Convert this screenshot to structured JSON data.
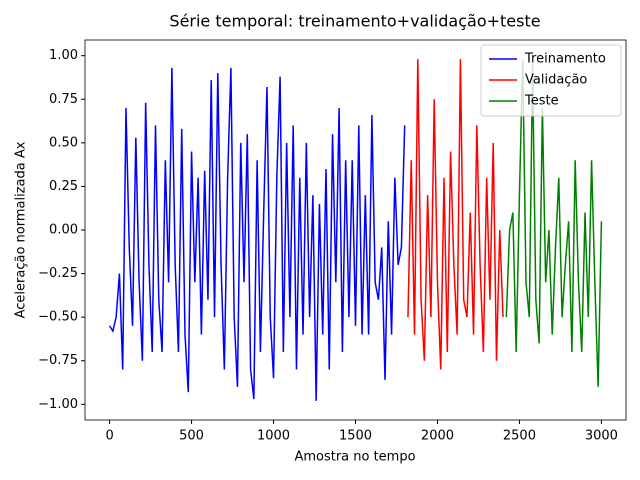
{
  "chart_data": {
    "type": "line",
    "title": "Série temporal: treinamento+validação+teste",
    "x_label": "Amostra no tempo",
    "y_label": "Aceleração normalizada Ax",
    "xlim": [
      -150,
      3150
    ],
    "ylim": [
      -1.09,
      1.09
    ],
    "xticks": [
      0,
      500,
      1000,
      1500,
      2000,
      2500,
      3000
    ],
    "yticks": [
      {
        "value": -1,
        "label": "−1.00"
      },
      {
        "value": -0.75,
        "label": "−0.75"
      },
      {
        "value": -0.5,
        "label": "−0.50"
      },
      {
        "value": -0.25,
        "label": "−0.25"
      },
      {
        "value": 0,
        "label": "0.00"
      },
      {
        "value": 0.25,
        "label": "0.25"
      },
      {
        "value": 0.5,
        "label": "0.50"
      },
      {
        "value": 0.75,
        "label": "0.75"
      },
      {
        "value": 1,
        "label": "1.00"
      }
    ],
    "grid": false,
    "legend": "upper right",
    "series": [
      {
        "name": "Treinamento",
        "color": "#0000ff",
        "x": [
          0,
          20,
          40,
          60,
          80,
          100,
          120,
          140,
          160,
          180,
          200,
          220,
          240,
          260,
          280,
          300,
          320,
          340,
          360,
          380,
          400,
          420,
          440,
          460,
          480,
          500,
          520,
          540,
          560,
          580,
          600,
          620,
          640,
          660,
          680,
          700,
          720,
          740,
          760,
          780,
          800,
          820,
          840,
          860,
          880,
          900,
          920,
          940,
          960,
          980,
          1000,
          1020,
          1040,
          1060,
          1080,
          1100,
          1120,
          1140,
          1160,
          1180,
          1200,
          1220,
          1240,
          1260,
          1280,
          1300,
          1320,
          1340,
          1360,
          1380,
          1400,
          1420,
          1440,
          1460,
          1480,
          1500,
          1520,
          1540,
          1560,
          1580,
          1600,
          1620,
          1640,
          1660,
          1680,
          1700,
          1720,
          1740,
          1760,
          1780,
          1800
        ],
        "values": [
          -0.55,
          -0.58,
          -0.5,
          -0.25,
          -0.8,
          0.7,
          -0.1,
          -0.55,
          0.53,
          -0.3,
          -0.75,
          0.73,
          -0.2,
          -0.7,
          0.6,
          -0.4,
          -0.7,
          0.4,
          -0.3,
          0.93,
          -0.2,
          -0.7,
          0.58,
          -0.6,
          -0.93,
          0.45,
          -0.3,
          0.3,
          -0.6,
          0.34,
          -0.4,
          0.86,
          -0.5,
          0.9,
          -0.2,
          -0.8,
          0.3,
          0.93,
          -0.5,
          -0.9,
          0.5,
          -0.3,
          0.55,
          -0.8,
          -0.97,
          0.4,
          -0.7,
          0.1,
          0.82,
          -0.5,
          -0.85,
          0.3,
          0.88,
          -0.7,
          0.5,
          -0.5,
          0.6,
          -0.8,
          0.3,
          -0.6,
          0.5,
          -0.5,
          0.2,
          -0.98,
          0.15,
          -0.6,
          0.35,
          -0.8,
          0.55,
          -0.3,
          0.7,
          -0.7,
          0.4,
          -0.5,
          0.4,
          -0.55,
          0.6,
          -0.6,
          0.2,
          -0.6,
          0.66,
          -0.3,
          -0.4,
          -0.1,
          -0.86,
          0.05,
          -0.6,
          0.3,
          -0.2,
          -0.1,
          0.6
        ]
      },
      {
        "name": "Validação",
        "color": "#ff0000",
        "x": [
          1820,
          1840,
          1860,
          1880,
          1900,
          1920,
          1940,
          1960,
          1980,
          2000,
          2020,
          2040,
          2060,
          2080,
          2100,
          2120,
          2140,
          2160,
          2180,
          2200,
          2220,
          2240,
          2260,
          2280,
          2300,
          2320,
          2340,
          2360,
          2380,
          2400
        ],
        "values": [
          -0.5,
          0.4,
          -0.6,
          0.98,
          -0.4,
          -0.75,
          0.2,
          -0.5,
          0.75,
          -0.3,
          -0.8,
          0.3,
          -0.7,
          0.45,
          -0.2,
          -0.6,
          0.98,
          -0.4,
          -0.5,
          0.1,
          -0.6,
          0.6,
          -0.2,
          -0.7,
          0.3,
          -0.4,
          0.5,
          -0.75,
          0,
          -0.5
        ]
      },
      {
        "name": "Teste",
        "color": "#008000",
        "x": [
          2420,
          2440,
          2460,
          2480,
          2500,
          2520,
          2540,
          2560,
          2580,
          2600,
          2620,
          2640,
          2660,
          2680,
          2700,
          2720,
          2740,
          2760,
          2780,
          2800,
          2820,
          2840,
          2860,
          2880,
          2900,
          2920,
          2940,
          2960,
          2980,
          3000
        ],
        "values": [
          -0.5,
          0,
          0.1,
          -0.7,
          0.2,
          0.98,
          -0.3,
          -0.5,
          0.95,
          -0.4,
          -0.65,
          0.7,
          -0.3,
          0,
          -0.6,
          -0.1,
          0.3,
          -0.5,
          -0.2,
          0.05,
          -0.7,
          0.4,
          -0.3,
          -0.7,
          0.1,
          -0.5,
          0.4,
          -0.3,
          -0.9,
          0.05
        ]
      }
    ]
  }
}
